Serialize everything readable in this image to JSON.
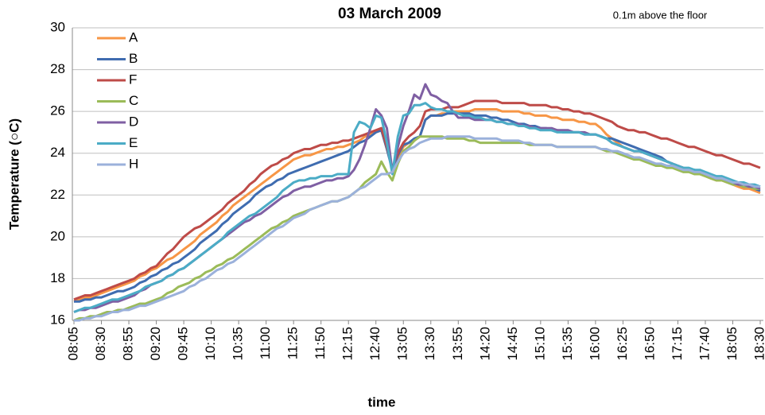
{
  "chart_data": {
    "type": "line",
    "title": "03 March 2009",
    "annotation": "0.1m above the floor",
    "x_label": "time",
    "y_label": "Temperature (○C)",
    "ylim": [
      16,
      30
    ],
    "yticks": [
      16,
      18,
      20,
      22,
      24,
      26,
      28,
      30
    ],
    "grid": true,
    "legend": "top-left",
    "categories": [
      "08:05",
      null,
      null,
      null,
      null,
      "08:30",
      null,
      null,
      null,
      null,
      "08:55",
      null,
      null,
      null,
      null,
      "09:20",
      null,
      null,
      null,
      null,
      "09:45",
      null,
      null,
      null,
      null,
      "10:10",
      null,
      null,
      null,
      null,
      "10:35",
      null,
      null,
      null,
      null,
      "11:00",
      null,
      null,
      null,
      null,
      "11:25",
      null,
      null,
      null,
      null,
      "11:50",
      null,
      null,
      null,
      null,
      "12:15",
      null,
      null,
      null,
      null,
      "12:40",
      null,
      null,
      null,
      null,
      "13:05",
      null,
      null,
      null,
      null,
      "13:30",
      null,
      null,
      null,
      null,
      "13:55",
      null,
      null,
      null,
      null,
      "14:20",
      null,
      null,
      null,
      null,
      "14:45",
      null,
      null,
      null,
      null,
      "15:10",
      null,
      null,
      null,
      null,
      "15:35",
      null,
      null,
      null,
      null,
      "16:00",
      null,
      null,
      null,
      null,
      "16:25",
      null,
      null,
      null,
      null,
      "16:50",
      null,
      null,
      null,
      null,
      "17:15",
      null,
      null,
      null,
      null,
      "17:40",
      null,
      null,
      null,
      null,
      "18:05",
      null,
      null,
      null,
      null,
      "18:30"
    ],
    "series": [
      {
        "name": "A",
        "color": "#f79646",
        "values": [
          16.9,
          17.0,
          17.1,
          17.1,
          17.2,
          17.3,
          17.4,
          17.5,
          17.6,
          17.7,
          17.8,
          17.9,
          18.1,
          18.2,
          18.4,
          18.5,
          18.7,
          18.9,
          19.0,
          19.2,
          19.4,
          19.6,
          19.8,
          20.1,
          20.3,
          20.5,
          20.7,
          21.0,
          21.2,
          21.5,
          21.7,
          21.9,
          22.1,
          22.3,
          22.5,
          22.7,
          22.9,
          23.1,
          23.3,
          23.5,
          23.7,
          23.8,
          23.9,
          23.9,
          24.0,
          24.1,
          24.2,
          24.2,
          24.3,
          24.3,
          24.4,
          24.5,
          24.6,
          24.8,
          24.9,
          25.0,
          25.1,
          24.2,
          23.3,
          23.8,
          24.3,
          24.5,
          24.6,
          24.8,
          25.6,
          25.8,
          25.8,
          25.9,
          25.9,
          26.0,
          26.0,
          26.0,
          26.0,
          26.1,
          26.1,
          26.1,
          26.1,
          26.1,
          26.0,
          26.0,
          26.0,
          26.0,
          25.9,
          25.9,
          25.8,
          25.8,
          25.8,
          25.7,
          25.7,
          25.6,
          25.6,
          25.6,
          25.5,
          25.5,
          25.4,
          25.4,
          25.2,
          24.9,
          24.7,
          24.5,
          24.3,
          24.2,
          24.1,
          24.1,
          24.0,
          23.9,
          23.8,
          23.7,
          23.6,
          23.5,
          23.4,
          23.3,
          23.2,
          23.1,
          23.0,
          22.9,
          22.8,
          22.7,
          22.7,
          22.6,
          22.5,
          22.4,
          22.3,
          22.3,
          22.2,
          22.1
        ]
      },
      {
        "name": "B",
        "color": "#3f6cb0",
        "values": [
          16.9,
          16.9,
          17.0,
          17.0,
          17.1,
          17.1,
          17.2,
          17.3,
          17.4,
          17.4,
          17.5,
          17.6,
          17.8,
          17.9,
          18.1,
          18.2,
          18.4,
          18.5,
          18.7,
          18.8,
          19.0,
          19.2,
          19.4,
          19.7,
          19.9,
          20.1,
          20.3,
          20.6,
          20.8,
          21.1,
          21.3,
          21.5,
          21.7,
          22.0,
          22.2,
          22.4,
          22.5,
          22.7,
          22.8,
          23.0,
          23.1,
          23.2,
          23.3,
          23.4,
          23.5,
          23.6,
          23.7,
          23.8,
          23.9,
          24.0,
          24.1,
          24.3,
          24.5,
          24.6,
          24.8,
          25.0,
          25.1,
          24.2,
          23.2,
          23.9,
          24.4,
          24.5,
          24.7,
          24.8,
          25.6,
          25.8,
          25.8,
          25.8,
          25.9,
          25.9,
          25.9,
          25.9,
          25.9,
          25.8,
          25.8,
          25.8,
          25.7,
          25.7,
          25.6,
          25.6,
          25.5,
          25.4,
          25.4,
          25.3,
          25.3,
          25.2,
          25.2,
          25.1,
          25.1,
          25.0,
          25.0,
          25.0,
          25.0,
          24.9,
          24.9,
          24.9,
          24.8,
          24.7,
          24.7,
          24.6,
          24.5,
          24.4,
          24.3,
          24.2,
          24.1,
          24.0,
          23.9,
          23.8,
          23.6,
          23.5,
          23.4,
          23.3,
          23.2,
          23.2,
          23.1,
          23.0,
          22.9,
          22.8,
          22.8,
          22.7,
          22.6,
          22.5,
          22.4,
          22.4,
          22.3,
          22.2
        ]
      },
      {
        "name": "F",
        "color": "#be4b48",
        "values": [
          17.0,
          17.1,
          17.2,
          17.2,
          17.3,
          17.4,
          17.5,
          17.6,
          17.7,
          17.8,
          17.9,
          18.0,
          18.2,
          18.3,
          18.5,
          18.6,
          18.9,
          19.2,
          19.4,
          19.7,
          20.0,
          20.2,
          20.4,
          20.5,
          20.7,
          20.9,
          21.1,
          21.3,
          21.6,
          21.8,
          22.0,
          22.2,
          22.5,
          22.7,
          23.0,
          23.2,
          23.4,
          23.5,
          23.7,
          23.8,
          24.0,
          24.1,
          24.2,
          24.2,
          24.3,
          24.4,
          24.4,
          24.5,
          24.5,
          24.6,
          24.6,
          24.7,
          24.8,
          24.9,
          25.0,
          25.1,
          25.2,
          24.3,
          23.3,
          24.0,
          24.5,
          24.8,
          25.0,
          25.3,
          26.0,
          26.1,
          26.1,
          26.1,
          26.2,
          26.2,
          26.2,
          26.3,
          26.4,
          26.5,
          26.5,
          26.5,
          26.5,
          26.5,
          26.4,
          26.4,
          26.4,
          26.4,
          26.4,
          26.3,
          26.3,
          26.3,
          26.3,
          26.2,
          26.2,
          26.1,
          26.1,
          26.0,
          26.0,
          25.9,
          25.9,
          25.8,
          25.7,
          25.6,
          25.5,
          25.3,
          25.2,
          25.1,
          25.1,
          25.0,
          25.0,
          24.9,
          24.8,
          24.7,
          24.7,
          24.6,
          24.5,
          24.4,
          24.3,
          24.3,
          24.2,
          24.1,
          24.0,
          23.9,
          23.9,
          23.8,
          23.7,
          23.6,
          23.5,
          23.5,
          23.4,
          23.3
        ]
      },
      {
        "name": "C",
        "color": "#9bbb59",
        "values": [
          16.0,
          16.1,
          16.1,
          16.2,
          16.2,
          16.3,
          16.4,
          16.4,
          16.5,
          16.5,
          16.6,
          16.7,
          16.8,
          16.8,
          16.9,
          17.0,
          17.1,
          17.3,
          17.4,
          17.6,
          17.7,
          17.8,
          18.0,
          18.1,
          18.3,
          18.4,
          18.6,
          18.7,
          18.9,
          19.0,
          19.2,
          19.4,
          19.6,
          19.8,
          20.0,
          20.2,
          20.4,
          20.5,
          20.7,
          20.8,
          21.0,
          21.1,
          21.2,
          21.3,
          21.4,
          21.5,
          21.6,
          21.7,
          21.7,
          21.8,
          21.9,
          22.1,
          22.3,
          22.6,
          22.8,
          23.0,
          23.6,
          23.1,
          22.7,
          23.5,
          24.1,
          24.3,
          24.6,
          24.8,
          24.8,
          24.8,
          24.8,
          24.8,
          24.7,
          24.7,
          24.7,
          24.7,
          24.6,
          24.6,
          24.5,
          24.5,
          24.5,
          24.5,
          24.5,
          24.5,
          24.5,
          24.5,
          24.5,
          24.4,
          24.4,
          24.4,
          24.4,
          24.4,
          24.3,
          24.3,
          24.3,
          24.3,
          24.3,
          24.3,
          24.3,
          24.3,
          24.2,
          24.1,
          24.1,
          24.0,
          23.9,
          23.8,
          23.7,
          23.7,
          23.6,
          23.5,
          23.4,
          23.4,
          23.3,
          23.3,
          23.2,
          23.1,
          23.1,
          23.0,
          23.0,
          22.9,
          22.8,
          22.7,
          22.7,
          22.6,
          22.5,
          22.5,
          22.4,
          22.4,
          22.3,
          22.3
        ]
      },
      {
        "name": "D",
        "color": "#7f5fa3",
        "values": [
          16.4,
          16.5,
          16.5,
          16.6,
          16.6,
          16.7,
          16.8,
          16.9,
          16.9,
          17.0,
          17.1,
          17.2,
          17.4,
          17.5,
          17.7,
          17.8,
          17.9,
          18.1,
          18.2,
          18.4,
          18.5,
          18.7,
          18.9,
          19.1,
          19.3,
          19.5,
          19.7,
          19.9,
          20.1,
          20.3,
          20.5,
          20.7,
          20.8,
          21.0,
          21.1,
          21.3,
          21.5,
          21.7,
          21.9,
          22.0,
          22.2,
          22.3,
          22.4,
          22.4,
          22.5,
          22.6,
          22.7,
          22.7,
          22.8,
          22.8,
          22.9,
          23.2,
          23.7,
          24.4,
          25.2,
          26.1,
          25.8,
          25.2,
          23.1,
          24.3,
          25.3,
          26.0,
          26.8,
          26.6,
          27.3,
          26.8,
          26.7,
          26.5,
          26.4,
          26.0,
          25.7,
          25.7,
          25.7,
          25.6,
          25.6,
          25.6,
          25.6,
          25.5,
          25.5,
          25.4,
          25.4,
          25.4,
          25.3,
          25.3,
          25.2,
          25.2,
          25.2,
          25.2,
          25.1,
          25.1,
          25.1,
          25.0,
          25.0,
          25.0,
          24.9,
          24.9,
          24.8,
          24.7,
          24.5,
          24.4,
          24.3,
          24.2,
          24.1,
          24.1,
          24.0,
          23.9,
          23.8,
          23.7,
          23.6,
          23.5,
          23.4,
          23.3,
          23.2,
          23.2,
          23.1,
          23.0,
          22.9,
          22.8,
          22.8,
          22.7,
          22.6,
          22.5,
          22.5,
          22.4,
          22.4,
          22.3
        ]
      },
      {
        "name": "E",
        "color": "#4bacc6",
        "values": [
          16.4,
          16.5,
          16.6,
          16.6,
          16.7,
          16.8,
          16.9,
          17.0,
          17.0,
          17.1,
          17.2,
          17.3,
          17.4,
          17.6,
          17.7,
          17.8,
          17.9,
          18.1,
          18.2,
          18.4,
          18.5,
          18.7,
          18.9,
          19.1,
          19.3,
          19.5,
          19.7,
          19.9,
          20.2,
          20.4,
          20.6,
          20.8,
          21.0,
          21.1,
          21.3,
          21.5,
          21.7,
          21.9,
          22.2,
          22.4,
          22.6,
          22.7,
          22.7,
          22.8,
          22.8,
          22.9,
          22.9,
          22.9,
          23.0,
          23.0,
          23.0,
          25.0,
          25.5,
          25.4,
          25.2,
          25.8,
          25.7,
          24.5,
          23.0,
          24.8,
          25.8,
          25.9,
          26.3,
          26.3,
          26.4,
          26.2,
          26.1,
          26.1,
          26.0,
          26.0,
          25.9,
          25.8,
          25.8,
          25.7,
          25.7,
          25.6,
          25.6,
          25.5,
          25.5,
          25.4,
          25.4,
          25.3,
          25.3,
          25.2,
          25.2,
          25.1,
          25.1,
          25.1,
          25.0,
          25.0,
          25.0,
          25.0,
          25.0,
          24.9,
          24.9,
          24.9,
          24.8,
          24.7,
          24.5,
          24.4,
          24.3,
          24.2,
          24.1,
          24.1,
          24.0,
          23.9,
          23.8,
          23.7,
          23.6,
          23.5,
          23.4,
          23.3,
          23.3,
          23.2,
          23.2,
          23.1,
          23.0,
          22.9,
          22.9,
          22.8,
          22.7,
          22.6,
          22.6,
          22.5,
          22.5,
          22.4
        ]
      },
      {
        "name": "H",
        "color": "#9bb1db",
        "values": [
          16.0,
          16.0,
          16.1,
          16.1,
          16.2,
          16.2,
          16.3,
          16.4,
          16.4,
          16.5,
          16.5,
          16.6,
          16.7,
          16.7,
          16.8,
          16.9,
          17.0,
          17.1,
          17.2,
          17.3,
          17.4,
          17.6,
          17.7,
          17.9,
          18.0,
          18.2,
          18.4,
          18.5,
          18.7,
          18.8,
          19.0,
          19.2,
          19.4,
          19.6,
          19.8,
          20.0,
          20.2,
          20.4,
          20.5,
          20.7,
          20.9,
          21.0,
          21.1,
          21.3,
          21.4,
          21.5,
          21.6,
          21.7,
          21.7,
          21.8,
          21.9,
          22.1,
          22.3,
          22.4,
          22.6,
          22.8,
          23.0,
          23.0,
          23.1,
          23.6,
          24.0,
          24.2,
          24.3,
          24.5,
          24.6,
          24.7,
          24.7,
          24.7,
          24.8,
          24.8,
          24.8,
          24.8,
          24.8,
          24.7,
          24.7,
          24.7,
          24.7,
          24.7,
          24.6,
          24.6,
          24.6,
          24.6,
          24.5,
          24.5,
          24.4,
          24.4,
          24.4,
          24.4,
          24.3,
          24.3,
          24.3,
          24.3,
          24.3,
          24.3,
          24.3,
          24.3,
          24.2,
          24.2,
          24.1,
          24.1,
          24.0,
          23.9,
          23.8,
          23.8,
          23.7,
          23.6,
          23.5,
          23.5,
          23.4,
          23.4,
          23.3,
          23.2,
          23.2,
          23.1,
          23.1,
          23.0,
          22.9,
          22.8,
          22.8,
          22.7,
          22.6,
          22.6,
          22.5,
          22.5,
          22.4,
          22.4
        ]
      }
    ]
  }
}
